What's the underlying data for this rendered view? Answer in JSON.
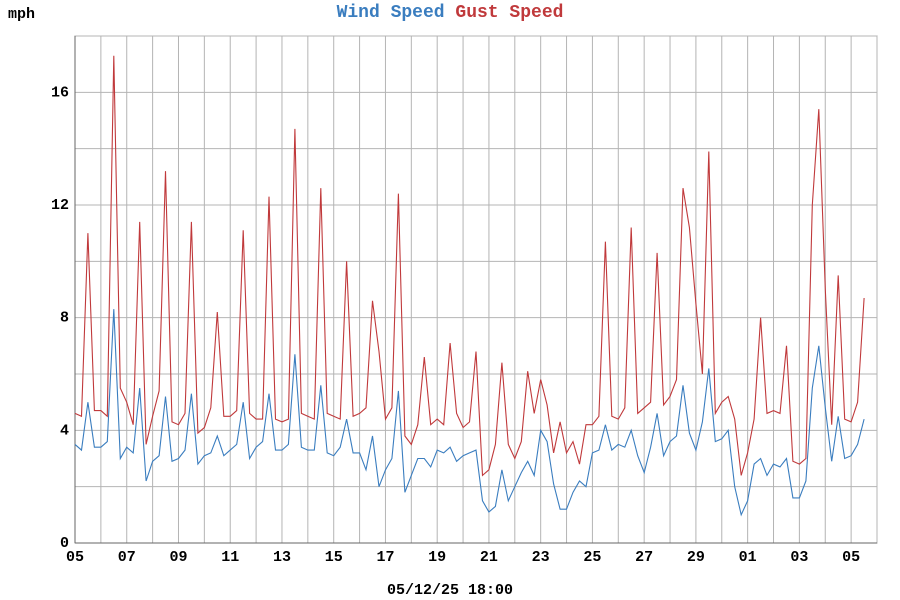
{
  "chart_data": {
    "type": "line",
    "y_unit": "mph",
    "footer": "05/12/25 18:00",
    "xlim": [
      0,
      31
    ],
    "ylim": [
      0,
      18
    ],
    "xticks": [
      {
        "value": 0,
        "label": "05"
      },
      {
        "value": 2,
        "label": "07"
      },
      {
        "value": 4,
        "label": "09"
      },
      {
        "value": 6,
        "label": "11"
      },
      {
        "value": 8,
        "label": "13"
      },
      {
        "value": 10,
        "label": "15"
      },
      {
        "value": 12,
        "label": "17"
      },
      {
        "value": 14,
        "label": "19"
      },
      {
        "value": 16,
        "label": "21"
      },
      {
        "value": 18,
        "label": "23"
      },
      {
        "value": 20,
        "label": "25"
      },
      {
        "value": 22,
        "label": "27"
      },
      {
        "value": 24,
        "label": "29"
      },
      {
        "value": 26,
        "label": "01"
      },
      {
        "value": 28,
        "label": "03"
      },
      {
        "value": 30,
        "label": "05"
      }
    ],
    "minor_xticks": [
      1,
      3,
      5,
      7,
      9,
      11,
      13,
      15,
      17,
      19,
      21,
      23,
      25,
      27,
      29,
      31
    ],
    "yticks": [
      0,
      4,
      8,
      12,
      16
    ],
    "minor_yticks": [
      2,
      6,
      10,
      14,
      18
    ],
    "grid": true,
    "x": [
      0,
      0.25,
      0.5,
      0.75,
      1,
      1.25,
      1.5,
      1.75,
      2,
      2.25,
      2.5,
      2.75,
      3,
      3.25,
      3.5,
      3.75,
      4,
      4.25,
      4.5,
      4.75,
      5,
      5.25,
      5.5,
      5.75,
      6,
      6.25,
      6.5,
      6.75,
      7,
      7.25,
      7.5,
      7.75,
      8,
      8.25,
      8.5,
      8.75,
      9,
      9.25,
      9.5,
      9.75,
      10,
      10.25,
      10.5,
      10.75,
      11,
      11.25,
      11.5,
      11.75,
      12,
      12.25,
      12.5,
      12.75,
      13,
      13.25,
      13.5,
      13.75,
      14,
      14.25,
      14.5,
      14.75,
      15,
      15.25,
      15.5,
      15.75,
      16,
      16.25,
      16.5,
      16.75,
      17,
      17.25,
      17.5,
      17.75,
      18,
      18.25,
      18.5,
      18.75,
      19,
      19.25,
      19.5,
      19.75,
      20,
      20.25,
      20.5,
      20.75,
      21,
      21.25,
      21.5,
      21.75,
      22,
      22.25,
      22.5,
      22.75,
      23,
      23.25,
      23.5,
      23.75,
      24,
      24.25,
      24.5,
      24.75,
      25,
      25.25,
      25.5,
      25.75,
      26,
      26.25,
      26.5,
      26.75,
      27,
      27.25,
      27.5,
      27.75,
      28,
      28.25,
      28.5,
      28.75,
      29,
      29.25,
      29.5,
      29.75,
      30,
      30.25,
      30.5
    ],
    "series": [
      {
        "name": "Wind Speed",
        "color": "#3a7dbf",
        "values": [
          3.5,
          3.3,
          5,
          3.4,
          3.4,
          3.6,
          8.3,
          3,
          3.4,
          3.2,
          5.5,
          2.2,
          2.9,
          3.1,
          5.2,
          2.9,
          3,
          3.3,
          5.3,
          2.8,
          3.1,
          3.2,
          3.8,
          3.1,
          3.3,
          3.5,
          5,
          3,
          3.4,
          3.6,
          5.3,
          3.3,
          3.3,
          3.5,
          6.7,
          3.4,
          3.3,
          3.3,
          5.6,
          3.2,
          3.1,
          3.4,
          4.4,
          3.2,
          3.2,
          2.6,
          3.8,
          2,
          2.6,
          3,
          5.4,
          1.8,
          2.4,
          3,
          3,
          2.7,
          3.3,
          3.2,
          3.4,
          2.9,
          3.1,
          3.2,
          3.3,
          1.5,
          1.1,
          1.3,
          2.6,
          1.5,
          2,
          2.5,
          2.9,
          2.4,
          4,
          3.6,
          2.1,
          1.2,
          1.2,
          1.8,
          2.2,
          2,
          3.2,
          3.3,
          4.2,
          3.3,
          3.5,
          3.4,
          4,
          3.1,
          2.5,
          3.4,
          4.6,
          3.1,
          3.6,
          3.8,
          5.6,
          3.9,
          3.3,
          4.3,
          6.2,
          3.6,
          3.7,
          4,
          2,
          1,
          1.5,
          2.8,
          3,
          2.4,
          2.8,
          2.7,
          3,
          1.6,
          1.6,
          2.2,
          5.5,
          7,
          4.8,
          2.9,
          4.5,
          3,
          3.1,
          3.5,
          4.4
        ]
      },
      {
        "name": "Gust Speed",
        "color": "#c0393b",
        "values": [
          4.6,
          4.5,
          11,
          4.7,
          4.7,
          4.5,
          17.3,
          5.5,
          5,
          4.2,
          11.4,
          3.5,
          4.5,
          5.4,
          13.2,
          4.3,
          4.2,
          4.6,
          11.4,
          3.9,
          4.1,
          4.8,
          8.2,
          4.5,
          4.5,
          4.7,
          11.1,
          4.6,
          4.4,
          4.4,
          12.3,
          4.4,
          4.3,
          4.4,
          14.7,
          4.6,
          4.5,
          4.4,
          12.6,
          4.6,
          4.5,
          4.4,
          10,
          4.5,
          4.6,
          4.8,
          8.6,
          6.8,
          4.4,
          4.8,
          12.4,
          3.8,
          3.5,
          4.2,
          6.6,
          4.2,
          4.4,
          4.2,
          7.1,
          4.6,
          4.1,
          4.3,
          6.8,
          2.4,
          2.6,
          3.5,
          6.4,
          3.5,
          3,
          3.6,
          6.1,
          4.6,
          5.8,
          4.9,
          3.2,
          4.3,
          3.2,
          3.6,
          2.8,
          4.2,
          4.2,
          4.5,
          10.7,
          4.5,
          4.4,
          4.8,
          11.2,
          4.6,
          4.8,
          5,
          10.3,
          4.9,
          5.2,
          5.8,
          12.6,
          11.2,
          8.5,
          6,
          13.9,
          4.6,
          5,
          5.2,
          4.4,
          2.4,
          3.2,
          4.4,
          8,
          4.6,
          4.7,
          4.6,
          7,
          2.9,
          2.8,
          3,
          12,
          15.4,
          9,
          4.2,
          9.5,
          4.4,
          4.3,
          5,
          8.7
        ]
      }
    ]
  }
}
